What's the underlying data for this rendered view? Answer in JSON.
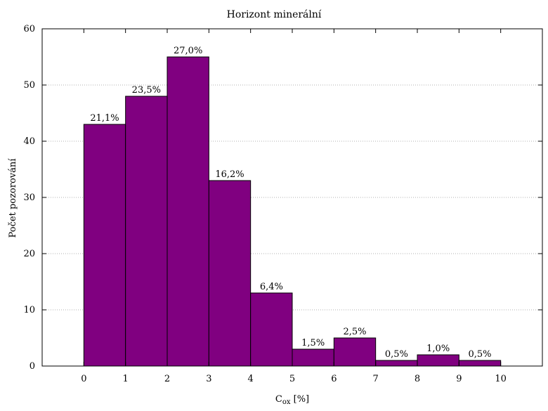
{
  "chart_data": {
    "type": "bar",
    "title": "Horizont minerální",
    "xlabel": {
      "main": "C",
      "sub": "ox",
      "rest": " [%]"
    },
    "ylabel": "Počet pozorování",
    "x_ticks": [
      "0",
      "1",
      "2",
      "3",
      "4",
      "5",
      "6",
      "7",
      "8",
      "9",
      "10"
    ],
    "y_ticks": [
      "0",
      "10",
      "20",
      "30",
      "40",
      "50",
      "60"
    ],
    "xlim": [
      -1,
      11
    ],
    "ylim": [
      0,
      60
    ],
    "grid": "horizontal dotted",
    "bars": [
      {
        "from": 0,
        "to": 1,
        "value": 43,
        "label": "21,1%"
      },
      {
        "from": 1,
        "to": 2,
        "value": 48,
        "label": "23,5%"
      },
      {
        "from": 2,
        "to": 3,
        "value": 55,
        "label": "27,0%"
      },
      {
        "from": 3,
        "to": 4,
        "value": 33,
        "label": "16,2%"
      },
      {
        "from": 4,
        "to": 5,
        "value": 13,
        "label": "6,4%"
      },
      {
        "from": 5,
        "to": 6,
        "value": 3,
        "label": "1,5%"
      },
      {
        "from": 6,
        "to": 7,
        "value": 5,
        "label": "2,5%"
      },
      {
        "from": 7,
        "to": 8,
        "value": 1,
        "label": "0,5%"
      },
      {
        "from": 8,
        "to": 9,
        "value": 2,
        "label": "1,0%"
      },
      {
        "from": 9,
        "to": 10,
        "value": 1,
        "label": "0,5%"
      }
    ],
    "colors": {
      "bar_fill": "#800080",
      "bar_stroke": "#000000",
      "grid": "#b0b0b0"
    }
  }
}
